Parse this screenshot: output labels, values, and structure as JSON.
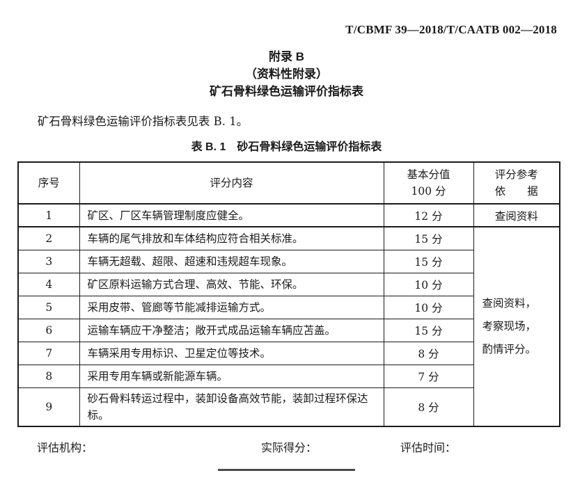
{
  "page": {
    "doc_number": "T/CBMF 39—2018/T/CAATB 002—2018",
    "appendix_title": "附录 B",
    "appendix_subtitle": "（资料性附录）",
    "appendix_heading": "矿石骨料绿色运输评价指标表",
    "intro_text": "矿石骨料绿色运输评价指标表见表 B. 1。",
    "table_caption": "表 B. 1　砂石骨料绿色运输评价指标表"
  },
  "table": {
    "headers": {
      "no": "序号",
      "content": "评分内容",
      "score_line1": "基本分值",
      "score_line2": "100 分",
      "ref_line1": "评分参考",
      "ref_line2": "依　　据"
    },
    "rows": [
      {
        "no": "1",
        "content": "矿区、厂区车辆管理制度应健全。",
        "score": "12 分",
        "reference": "查阅资料"
      },
      {
        "no": "2",
        "content": "车辆的尾气排放和车体结构应符合相关标准。",
        "score": "15 分"
      },
      {
        "no": "3",
        "content": "车辆无超载、超限、超速和违规超车现象。",
        "score": "15 分"
      },
      {
        "no": "4",
        "content": "矿区原料运输方式合理、高效、节能、环保。",
        "score": "10 分"
      },
      {
        "no": "5",
        "content": "采用皮带、管廊等节能减排运输方式。",
        "score": "10 分"
      },
      {
        "no": "6",
        "content": "运输车辆应干净整洁；敞开式成品运输车辆应苫盖。",
        "score": "15 分"
      },
      {
        "no": "7",
        "content": "车辆采用专用标识、卫星定位等技术。",
        "score": "8 分"
      },
      {
        "no": "8",
        "content": "采用专用车辆或新能源车辆。",
        "score": "7 分"
      },
      {
        "no": "9",
        "content": "砂石骨料转运过程中，装卸设备高效节能，装卸过程环保达标。",
        "score": "8 分"
      }
    ],
    "merged_reference": [
      "查阅资料，",
      "考察现场，",
      "酌情评分。"
    ]
  },
  "footer": {
    "org_label": "评估机构：",
    "score_label": "实际得分：",
    "time_label": "评估时间："
  }
}
